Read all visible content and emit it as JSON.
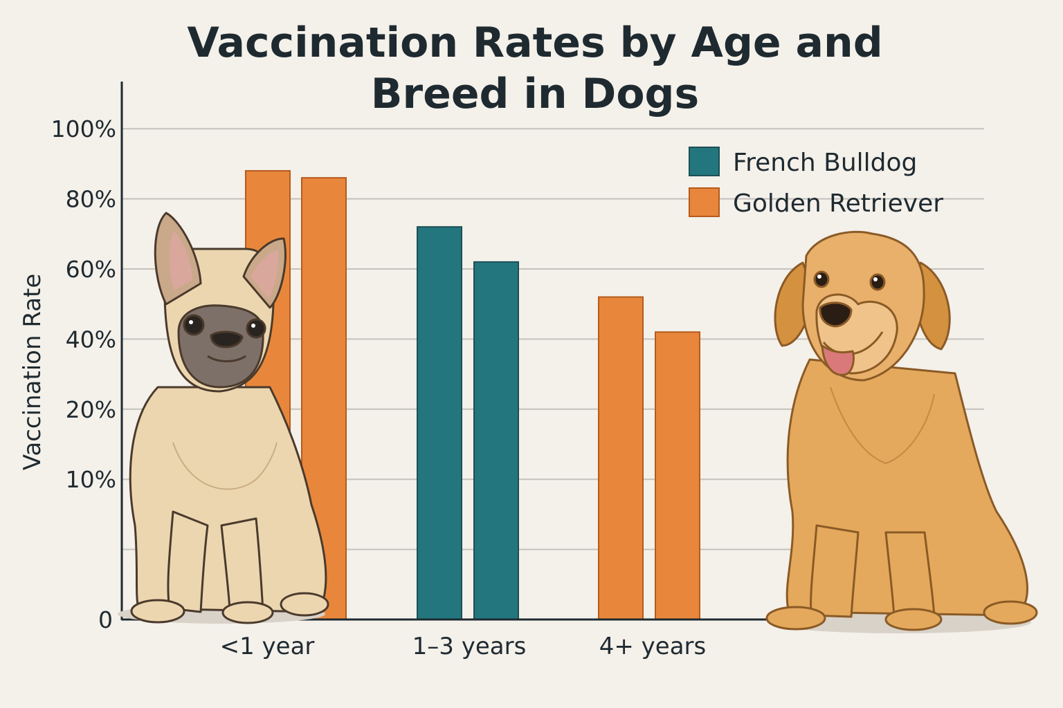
{
  "chart_data": {
    "type": "bar",
    "title_lines": [
      "Vaccination Rates by Age and",
      "Breed in Dogs"
    ],
    "title": "Vaccination Rates by Age and Breed in Dogs",
    "xlabel": "",
    "ylabel": "Vaccination Rate",
    "y_ticks": [
      {
        "value": 0,
        "label": "0"
      },
      {
        "value": 1,
        "label": ""
      },
      {
        "value": 2,
        "label": "10%"
      },
      {
        "value": 3,
        "label": "20%"
      },
      {
        "value": 4,
        "label": "40%"
      },
      {
        "value": 5,
        "label": "60%"
      },
      {
        "value": 6,
        "label": "80%"
      },
      {
        "value": 7,
        "label": "100%"
      }
    ],
    "ylim": [
      0,
      7.6
    ],
    "grid": true,
    "legend_position": "top-right",
    "categories": [
      "<1 year",
      "1–3 years",
      "4+ years"
    ],
    "bars": [
      {
        "category": "<1 year",
        "value": 88,
        "series": "Golden Retriever"
      },
      {
        "category": "<1 year",
        "value": 86,
        "series": "Golden Retriever"
      },
      {
        "category": "1–3 years",
        "value": 72,
        "series": "French Bulldog"
      },
      {
        "category": "1–3 years",
        "value": 62,
        "series": "French Bulldog"
      },
      {
        "category": "4+ years",
        "value": 52,
        "series": "Golden Retriever"
      },
      {
        "category": "4+ years",
        "value": 42,
        "series": "Golden Retriever"
      }
    ],
    "series": [
      {
        "name": "French Bulldog",
        "color": "#24767e"
      },
      {
        "name": "Golden Retriever",
        "color": "#e8873b"
      }
    ],
    "illustrations": [
      "french-bulldog",
      "golden-retriever"
    ]
  }
}
